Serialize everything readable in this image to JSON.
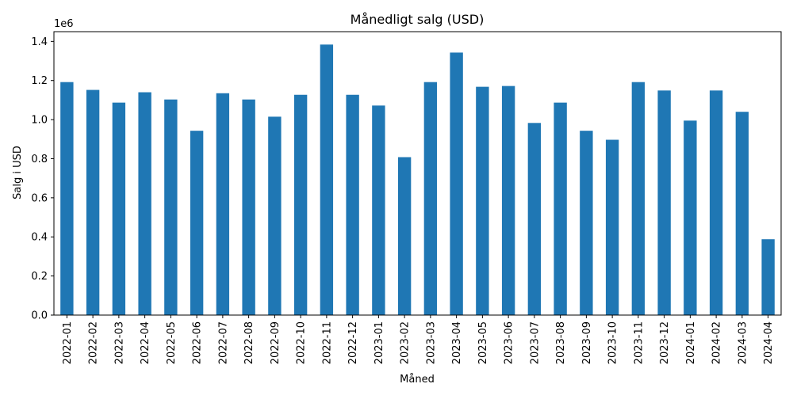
{
  "chart_data": {
    "type": "bar",
    "title": "Månedligt salg (USD)",
    "xlabel": "Måned",
    "ylabel": "Salg i USD",
    "y_scale_label": "1e6",
    "y_scale_factor": 1000000,
    "ylim": [
      0,
      1450000
    ],
    "yticks": [
      0,
      200000,
      400000,
      600000,
      800000,
      1000000,
      1200000,
      1400000
    ],
    "ytick_labels": [
      "0.0",
      "0.2",
      "0.4",
      "0.6",
      "0.8",
      "1.0",
      "1.2",
      "1.4"
    ],
    "grid": false,
    "bar_color": "#1f77b4",
    "categories": [
      "2022-01",
      "2022-02",
      "2022-03",
      "2022-04",
      "2022-05",
      "2022-06",
      "2022-07",
      "2022-08",
      "2022-09",
      "2022-10",
      "2022-11",
      "2022-12",
      "2023-01",
      "2023-02",
      "2023-03",
      "2023-04",
      "2023-05",
      "2023-06",
      "2023-07",
      "2023-08",
      "2023-09",
      "2023-10",
      "2023-11",
      "2023-12",
      "2024-01",
      "2024-02",
      "2024-03",
      "2024-04"
    ],
    "values": [
      1192000,
      1152000,
      1087000,
      1140000,
      1103000,
      943000,
      1135000,
      1103000,
      1015000,
      1127000,
      1384000,
      1127000,
      1072000,
      808000,
      1192000,
      1343000,
      1168000,
      1172000,
      983000,
      1087000,
      943000,
      897000,
      1192000,
      1149000,
      995000,
      1149000,
      1040000,
      388000
    ]
  }
}
